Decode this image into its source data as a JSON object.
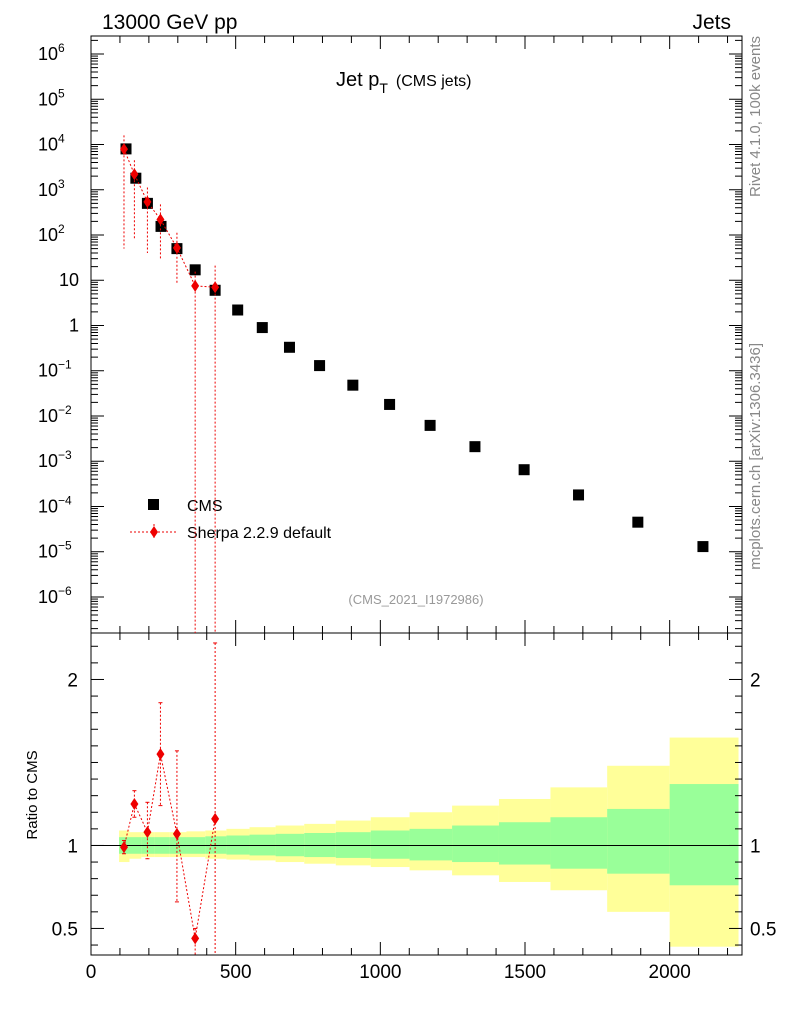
{
  "header": {
    "left": "13000 GeV pp",
    "right": "Jets"
  },
  "side": {
    "rivet": "Rivet 4.1.0,  100k events",
    "mcplots": "mcplots.cern.ch [arXiv:1306.3436]"
  },
  "chart_data": [
    {
      "type": "scatter",
      "panel": "main",
      "title_main": "Jet p",
      "title_sub": "T",
      "title_suffix": "(CMS jets)",
      "analysis_tag": "(CMS_2021_I1972986)",
      "yscale": "log",
      "xlim": [
        0,
        2250
      ],
      "ylim": [
        1.6e-07,
        2500000.0
      ],
      "y_ticks": [
        {
          "value": 1000000.0,
          "base": "10",
          "exp": "6"
        },
        {
          "value": 100000.0,
          "base": "10",
          "exp": "5"
        },
        {
          "value": 10000.0,
          "base": "10",
          "exp": "4"
        },
        {
          "value": 1000.0,
          "base": "10",
          "exp": "3"
        },
        {
          "value": 100.0,
          "base": "10",
          "exp": "2"
        },
        {
          "value": 10,
          "base": "10",
          "exp": ""
        },
        {
          "value": 1,
          "base": "1",
          "exp": ""
        },
        {
          "value": 0.1,
          "base": "10",
          "exp": "−1"
        },
        {
          "value": 0.01,
          "base": "10",
          "exp": "−2"
        },
        {
          "value": 0.001,
          "base": "10",
          "exp": "−3"
        },
        {
          "value": 0.0001,
          "base": "10",
          "exp": "−4"
        },
        {
          "value": 1e-05,
          "base": "10",
          "exp": "−5"
        },
        {
          "value": 1e-06,
          "base": "10",
          "exp": "−6"
        }
      ],
      "legend_position": "bottom-left",
      "series": [
        {
          "name": "CMS",
          "color": "#000000",
          "marker": "square",
          "x": [
            121,
            155,
            195,
            242,
            297,
            360,
            429,
            507,
            592,
            686,
            790,
            905,
            1032,
            1172,
            1327,
            1497,
            1685,
            1890,
            2115
          ],
          "y": [
            8000,
            1800,
            500,
            155,
            50,
            17,
            6,
            2.2,
            0.9,
            0.33,
            0.13,
            0.048,
            0.018,
            0.0062,
            0.0021,
            0.00065,
            0.00018,
            4.5e-05,
            1.3e-05
          ]
        },
        {
          "name": "Sherpa 2.2.9 default",
          "color": "#ee0000",
          "marker": "diamond",
          "linestyle": "dotted",
          "x": [
            114,
            150,
            195,
            240,
            297,
            360,
            429
          ],
          "y": [
            7900,
            2200,
            540,
            220,
            52,
            7.5,
            7
          ],
          "yerr_low": [
            7850,
            2120,
            500,
            190,
            44,
            7.5,
            7
          ],
          "yerr_high": [
            8000,
            2300,
            580,
            255,
            60,
            8,
            14
          ]
        }
      ]
    },
    {
      "type": "line",
      "panel": "ratio",
      "ylabel": "Ratio to CMS",
      "xlim": [
        0,
        2250
      ],
      "ylim": [
        0.34,
        2.28
      ],
      "y_ticks": [
        0.5,
        1,
        2
      ],
      "y_tick_labels": [
        "0.5",
        "1",
        "2"
      ],
      "x_ticks": [
        0,
        500,
        1000,
        1500,
        2000
      ],
      "x_tick_labels": [
        "0",
        "500",
        "1000",
        "1500",
        "2000"
      ],
      "reference_band": {
        "bin_edges": [
          97,
          133,
          174,
          220,
          272,
          330,
          395,
          468,
          548,
          638,
          737,
          846,
          967,
          1101,
          1248,
          1410,
          1588,
          1784,
          2000,
          2238
        ],
        "stat_low": [
          0.95,
          0.95,
          0.95,
          0.95,
          0.95,
          0.95,
          0.95,
          0.945,
          0.94,
          0.935,
          0.93,
          0.925,
          0.92,
          0.91,
          0.9,
          0.885,
          0.86,
          0.83,
          0.76
        ],
        "stat_high": [
          1.05,
          1.05,
          1.05,
          1.05,
          1.05,
          1.05,
          1.055,
          1.06,
          1.065,
          1.07,
          1.075,
          1.08,
          1.09,
          1.1,
          1.12,
          1.14,
          1.17,
          1.22,
          1.37
        ],
        "syst_low": [
          0.9,
          0.92,
          0.93,
          0.93,
          0.93,
          0.93,
          0.92,
          0.915,
          0.91,
          0.9,
          0.89,
          0.88,
          0.87,
          0.85,
          0.82,
          0.78,
          0.73,
          0.6,
          0.39
        ],
        "syst_high": [
          1.09,
          1.08,
          1.08,
          1.08,
          1.08,
          1.085,
          1.09,
          1.1,
          1.11,
          1.12,
          1.13,
          1.15,
          1.17,
          1.2,
          1.24,
          1.28,
          1.35,
          1.48,
          1.65
        ],
        "stat_color": "#99ff99",
        "syst_color": "#ffff99"
      },
      "series": [
        {
          "name": "Sherpa 2.2.9 default",
          "color": "#ee0000",
          "marker": "diamond",
          "linestyle": "dotted",
          "x": [
            114,
            150,
            195,
            240,
            297,
            360,
            429
          ],
          "y": [
            0.99,
            1.25,
            1.08,
            1.55,
            1.07,
            0.44,
            1.16
          ],
          "yerr_low": [
            0.95,
            1.17,
            0.92,
            1.24,
            0.66,
            0.3,
            0.3
          ],
          "yerr_high": [
            1.03,
            1.33,
            1.26,
            1.86,
            1.57,
            0.5,
            2.22
          ]
        }
      ]
    }
  ]
}
